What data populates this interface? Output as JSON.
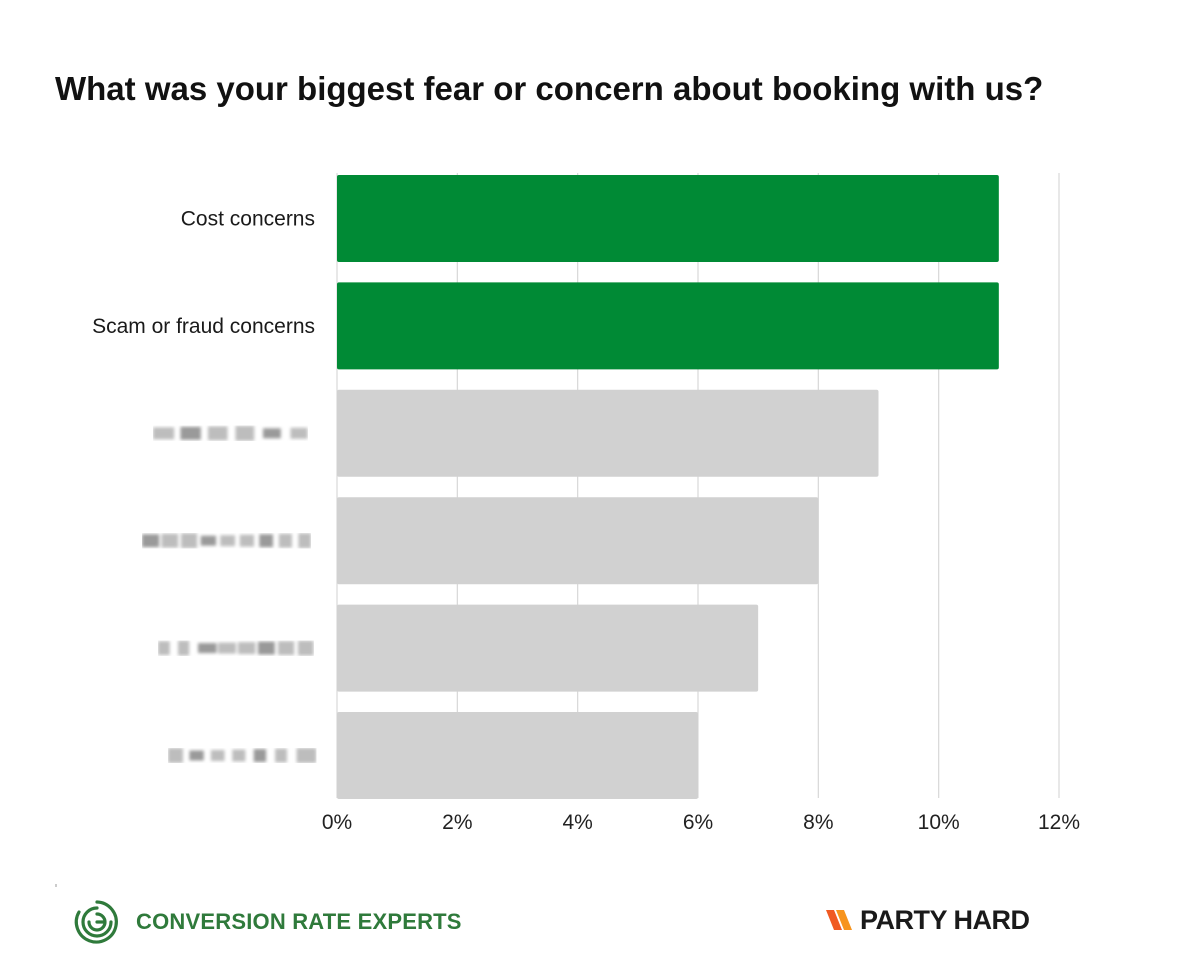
{
  "chart_data": {
    "type": "bar",
    "orientation": "horizontal",
    "title": "What was your biggest fear or concern about booking with us?",
    "categories": [
      "Cost concerns",
      "Scam or fraud concerns",
      "",
      "",
      "",
      ""
    ],
    "category_obscured": [
      false,
      false,
      true,
      true,
      true,
      true
    ],
    "values": [
      11,
      11,
      9,
      8,
      7,
      6
    ],
    "highlight": [
      true,
      true,
      false,
      false,
      false,
      false
    ],
    "xlim": [
      0,
      12
    ],
    "x_ticks": [
      "0%",
      "2%",
      "4%",
      "6%",
      "8%",
      "10%",
      "12%"
    ],
    "x_tick_values": [
      0,
      2,
      4,
      6,
      8,
      10,
      12
    ],
    "unit": "%",
    "grid": true,
    "legend": "none",
    "colors": {
      "highlight": "#008a35",
      "other": "#d1d1d1",
      "grid": "#d8d8d8"
    }
  },
  "footer": {
    "left_brand": {
      "text": "CONVERSION RATE EXPERTS",
      "icon": "maze-logo-icon",
      "color": "#2f7a3b"
    },
    "right_brand": {
      "text": "PARTY HARD",
      "icon": "party-hard-logo-icon",
      "color": "#1a1a1a",
      "accent": "#f05a22"
    }
  }
}
